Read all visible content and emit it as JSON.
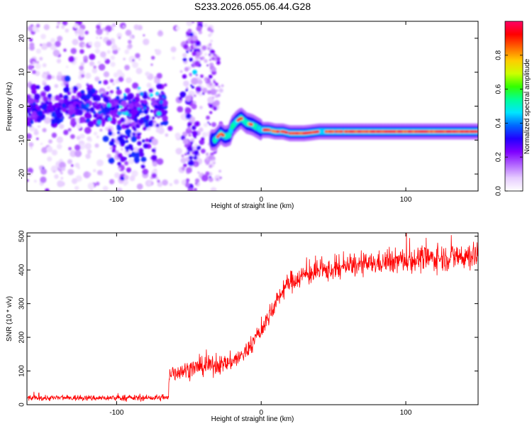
{
  "chart_data": [
    {
      "id": "spectrogram",
      "type": "heatmap",
      "title": "S233.2026.055.06.44.G28",
      "xlabel": "Height of straight line (km)",
      "ylabel": "Frequency (Hz)",
      "xlim": [
        -162,
        150
      ],
      "ylim": [
        -25,
        25
      ],
      "xticks": [
        -100,
        0,
        100
      ],
      "xtick_labels": [
        "-100",
        "0",
        "100"
      ],
      "yticks": [
        -20,
        -10,
        0,
        10,
        20
      ],
      "ytick_labels": [
        "-20",
        "-10",
        "0",
        "10",
        "20"
      ],
      "colorbar": {
        "label": "Normalized spectral amplitude",
        "range": [
          0,
          1
        ],
        "ticks": [
          0.0,
          0.2,
          0.4,
          0.6,
          0.8
        ],
        "tick_labels": [
          "0.0",
          "0.2",
          "0.4",
          "0.6",
          "0.8"
        ],
        "colormap": "rainbow",
        "stops": [
          "#ffffff",
          "#e6ccff",
          "#b366ff",
          "#7f00ff",
          "#2200ff",
          "#0066ff",
          "#00e5ff",
          "#00ff99",
          "#33ff00",
          "#ccff00",
          "#ffcc00",
          "#ff6600",
          "#ff0000",
          "#ff0066"
        ]
      },
      "ridge": {
        "description_points_x": [
          -32,
          -28,
          -25,
          -22,
          -20,
          -17,
          -14,
          -10,
          -6,
          -2,
          0,
          5,
          10,
          15,
          20,
          30,
          40,
          50,
          60,
          80,
          100,
          120,
          140,
          150
        ],
        "description_points_y": [
          -10,
          -8,
          -9,
          -8.5,
          -6,
          -4.5,
          -3.5,
          -5,
          -5.5,
          -6.5,
          -7,
          -7,
          -7.5,
          -7.5,
          -8,
          -8,
          -7.5,
          -7.5,
          -7.5,
          -7.5,
          -7.5,
          -7.5,
          -7.5,
          -7.5
        ]
      },
      "noise_region_x": [
        -162,
        -30
      ],
      "dense_band": {
        "x": [
          -162,
          -65
        ],
        "y_center": 0,
        "y_halfwidth": 4
      }
    },
    {
      "id": "snr",
      "type": "line",
      "xlabel": "Height of straight line (km)",
      "ylabel": "SNR (10 * v/v)",
      "xlim": [
        -162,
        150
      ],
      "ylim": [
        0,
        510
      ],
      "xticks": [
        -100,
        0,
        100
      ],
      "xtick_labels": [
        "-100",
        "0",
        "100"
      ],
      "yticks": [
        0,
        100,
        200,
        300,
        400,
        500
      ],
      "ytick_labels": [
        "0",
        "100",
        "200",
        "300",
        "400",
        "500"
      ],
      "series": [
        {
          "name": "SNR",
          "color": "#ff0000",
          "x": [
            -162,
            -140,
            -120,
            -100,
            -80,
            -65,
            -63,
            -55,
            -45,
            -35,
            -25,
            -15,
            -10,
            -5,
            0,
            5,
            10,
            15,
            20,
            30,
            40,
            50,
            60,
            80,
            100,
            120,
            140,
            150
          ],
          "y": [
            20,
            20,
            20,
            20,
            20,
            20,
            95,
            100,
            110,
            115,
            120,
            140,
            160,
            190,
            220,
            260,
            300,
            340,
            365,
            385,
            395,
            400,
            410,
            420,
            430,
            435,
            440,
            445
          ],
          "noise_amplitude": [
            8,
            8,
            8,
            8,
            8,
            8,
            25,
            25,
            25,
            25,
            25,
            25,
            25,
            25,
            25,
            25,
            25,
            25,
            30,
            30,
            30,
            30,
            30,
            30,
            35,
            35,
            40,
            40
          ]
        }
      ]
    }
  ]
}
